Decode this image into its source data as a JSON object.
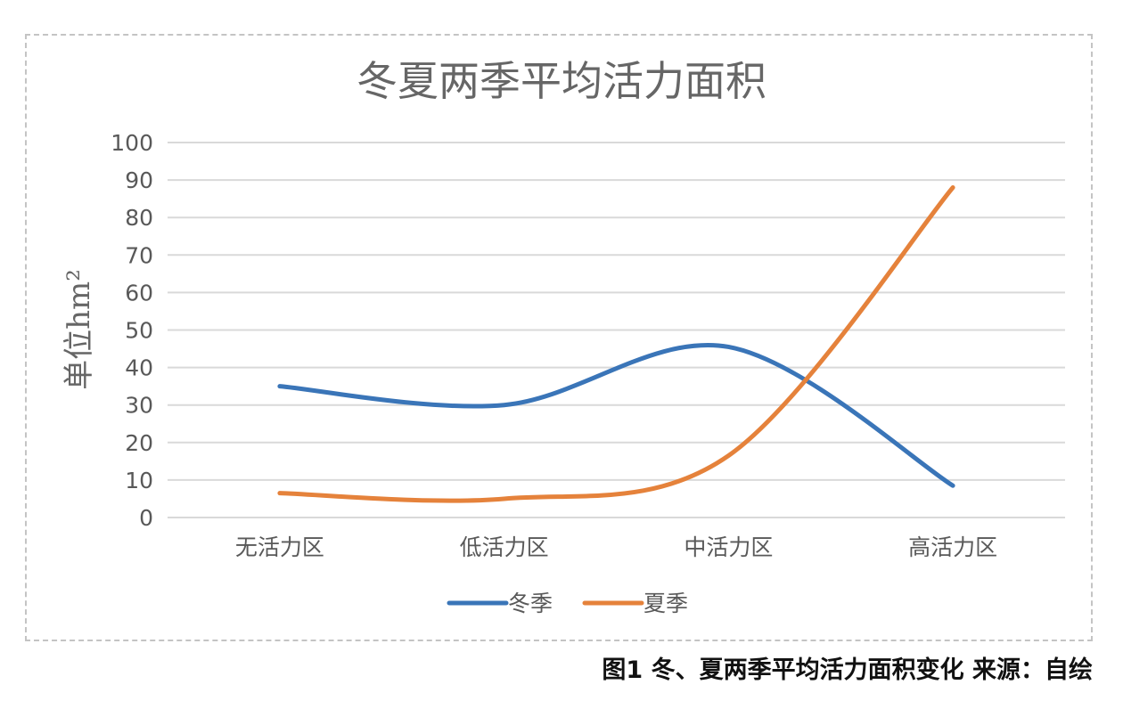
{
  "chart_data": {
    "type": "line",
    "title": "冬夏两季平均活力面积",
    "ylabel": "单位hm²",
    "xlabel": "",
    "categories": [
      "无活力区",
      "低活力区",
      "中活力区",
      "高活力区"
    ],
    "series": [
      {
        "name": "冬季",
        "color": "#3a75b8",
        "values": [
          35,
          30,
          45.5,
          8.5
        ]
      },
      {
        "name": "夏季",
        "color": "#e5823b",
        "values": [
          6.5,
          5,
          16.5,
          88
        ]
      }
    ],
    "ylim": [
      0,
      100
    ],
    "yticks": [
      0,
      10,
      20,
      30,
      40,
      50,
      60,
      70,
      80,
      90,
      100
    ],
    "grid": true,
    "smooth": true,
    "legend": "bottom"
  },
  "caption": "图1 冬、夏两季平均活力面积变化 来源：自绘"
}
